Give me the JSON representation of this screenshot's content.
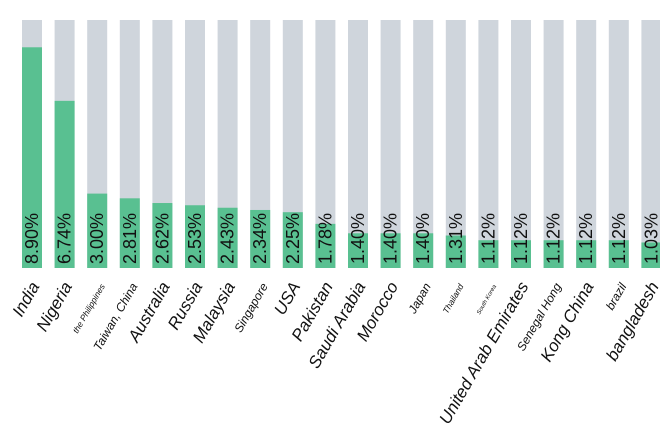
{
  "chart_data": {
    "type": "bar",
    "stacked_percent": true,
    "ylim": [
      0,
      10
    ],
    "colors": {
      "value": "#59c091",
      "track": "#cfd5dc",
      "text": "#111111"
    },
    "categories": [
      "India",
      "Nigeria",
      "the Philippines",
      "Taiwan, China",
      "Australia",
      "Russia",
      "Malaysia",
      "Singapore",
      "USA",
      "Pakistan",
      "Saudi Arabia",
      "Morocco",
      "Japan",
      "Thailand",
      "South Korea",
      "United Arab Emirates",
      "Senegal Hong",
      "Kong China",
      "brazil",
      "bangladesh"
    ],
    "values": [
      8.9,
      6.74,
      3.0,
      2.81,
      2.62,
      2.53,
      2.43,
      2.34,
      2.25,
      1.78,
      1.4,
      1.4,
      1.4,
      1.31,
      1.12,
      1.12,
      1.12,
      1.12,
      1.12,
      1.03
    ],
    "value_labels": [
      "8.90%",
      "6.74%",
      "3.00%",
      "2.81%",
      "2.62%",
      "2.53%",
      "2.43%",
      "2.34%",
      "2.25%",
      "1.78%",
      "1.40%",
      "1.40%",
      "1.40%",
      "1.31%",
      "1.12%",
      "1.12%",
      "1.12%",
      "1.12%",
      "1.12%",
      "1.03%"
    ],
    "label_sizes": [
      "large",
      "large",
      "small",
      "medium",
      "large",
      "large",
      "large",
      "medium",
      "large",
      "large",
      "large",
      "large",
      "medium",
      "small",
      "tiny",
      "large",
      "medium",
      "large",
      "medium",
      "large"
    ],
    "title": "",
    "xlabel": "",
    "ylabel": ""
  }
}
